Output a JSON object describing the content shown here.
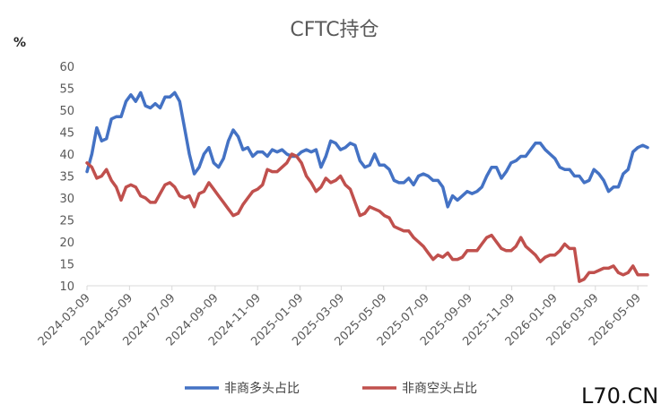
{
  "chart_data": {
    "type": "line",
    "title": "CFTC持仓",
    "unit_label": "%",
    "ylim": [
      10,
      60
    ],
    "yticks": [
      10,
      15,
      20,
      25,
      30,
      35,
      40,
      45,
      50,
      55,
      60
    ],
    "xticks": [
      "2024-03-09",
      "2024-05-09",
      "2024-07-09",
      "2024-09-09",
      "2024-11-09",
      "2025-01-09",
      "2025-03-09",
      "2025-05-09",
      "2025-07-09",
      "2025-09-09",
      "2025-11-09",
      "2026-01-09",
      "2026-03-09",
      "2026-05-09"
    ],
    "grid": false,
    "legend": "bottom",
    "colors": {
      "long": "#4472c4",
      "short": "#c0504d"
    },
    "series": [
      {
        "name": "非商多头占比",
        "points": [
          [
            "2024-03-09",
            36
          ],
          [
            "2024-03-16",
            40
          ],
          [
            "2024-03-23",
            46
          ],
          [
            "2024-03-30",
            43
          ],
          [
            "2024-04-06",
            43.5
          ],
          [
            "2024-04-13",
            48
          ],
          [
            "2024-04-20",
            48.5
          ],
          [
            "2024-04-27",
            48.5
          ],
          [
            "2024-05-04",
            52
          ],
          [
            "2024-05-11",
            53.5
          ],
          [
            "2024-05-18",
            52
          ],
          [
            "2024-05-25",
            54
          ],
          [
            "2024-06-01",
            51
          ],
          [
            "2024-06-08",
            50.5
          ],
          [
            "2024-06-15",
            51.5
          ],
          [
            "2024-06-22",
            50.5
          ],
          [
            "2024-06-29",
            53
          ],
          [
            "2024-07-06",
            53
          ],
          [
            "2024-07-13",
            54
          ],
          [
            "2024-07-20",
            52
          ],
          [
            "2024-07-27",
            46
          ],
          [
            "2024-08-03",
            40
          ],
          [
            "2024-08-10",
            35.5
          ],
          [
            "2024-08-17",
            37
          ],
          [
            "2024-08-24",
            40
          ],
          [
            "2024-08-31",
            41.5
          ],
          [
            "2024-09-07",
            38
          ],
          [
            "2024-09-14",
            37
          ],
          [
            "2024-09-21",
            39
          ],
          [
            "2024-09-28",
            43
          ],
          [
            "2024-10-05",
            45.5
          ],
          [
            "2024-10-12",
            44
          ],
          [
            "2024-10-19",
            41
          ],
          [
            "2024-10-26",
            41.5
          ],
          [
            "2024-11-02",
            39.5
          ],
          [
            "2024-11-09",
            40.5
          ],
          [
            "2024-11-16",
            40.5
          ],
          [
            "2024-11-23",
            39.5
          ],
          [
            "2024-11-30",
            41
          ],
          [
            "2024-12-07",
            40.5
          ],
          [
            "2024-12-14",
            41
          ],
          [
            "2024-12-21",
            40
          ],
          [
            "2024-12-28",
            39.5
          ],
          [
            "2025-01-04",
            39.5
          ],
          [
            "2025-01-11",
            40.5
          ],
          [
            "2025-01-18",
            41
          ],
          [
            "2025-01-25",
            40.5
          ],
          [
            "2025-02-01",
            41
          ],
          [
            "2025-02-08",
            37
          ],
          [
            "2025-02-15",
            39.5
          ],
          [
            "2025-02-22",
            43
          ],
          [
            "2025-03-01",
            42.5
          ],
          [
            "2025-03-08",
            41
          ],
          [
            "2025-03-15",
            41.5
          ],
          [
            "2025-03-22",
            42.5
          ],
          [
            "2025-03-29",
            42
          ],
          [
            "2025-04-05",
            38.5
          ],
          [
            "2025-04-12",
            37
          ],
          [
            "2025-04-19",
            37.5
          ],
          [
            "2025-04-26",
            40
          ],
          [
            "2025-05-03",
            37.5
          ],
          [
            "2025-05-10",
            37.5
          ],
          [
            "2025-05-17",
            36.5
          ],
          [
            "2025-05-24",
            34
          ],
          [
            "2025-05-31",
            33.5
          ],
          [
            "2025-06-07",
            33.5
          ],
          [
            "2025-06-14",
            34.5
          ],
          [
            "2025-06-21",
            33
          ],
          [
            "2025-06-28",
            35
          ],
          [
            "2025-07-05",
            35.5
          ],
          [
            "2025-07-12",
            35
          ],
          [
            "2025-07-19",
            34
          ],
          [
            "2025-07-26",
            34
          ],
          [
            "2025-08-02",
            32.5
          ],
          [
            "2025-08-09",
            28
          ],
          [
            "2025-08-16",
            30.5
          ],
          [
            "2025-08-23",
            29.5
          ],
          [
            "2025-08-30",
            30.5
          ],
          [
            "2025-09-06",
            31.5
          ],
          [
            "2025-09-13",
            31
          ],
          [
            "2025-09-20",
            31.5
          ],
          [
            "2025-09-27",
            32.5
          ],
          [
            "2025-10-04",
            35
          ],
          [
            "2025-10-11",
            37
          ],
          [
            "2025-10-18",
            37
          ],
          [
            "2025-10-25",
            34.5
          ],
          [
            "2025-11-01",
            36
          ],
          [
            "2025-11-08",
            38
          ],
          [
            "2025-11-15",
            38.5
          ],
          [
            "2025-11-22",
            39.5
          ],
          [
            "2025-11-29",
            39.5
          ],
          [
            "2025-12-06",
            41
          ],
          [
            "2025-12-13",
            42.5
          ],
          [
            "2025-12-20",
            42.5
          ],
          [
            "2025-12-27",
            41
          ],
          [
            "2026-01-03",
            40
          ],
          [
            "2026-01-10",
            39
          ],
          [
            "2026-01-17",
            37
          ],
          [
            "2026-01-24",
            36.5
          ],
          [
            "2026-01-31",
            36.5
          ],
          [
            "2026-02-07",
            35
          ],
          [
            "2026-02-14",
            35
          ],
          [
            "2026-02-21",
            33.5
          ],
          [
            "2026-02-28",
            34
          ],
          [
            "2026-03-07",
            36.5
          ],
          [
            "2026-03-14",
            35.5
          ],
          [
            "2026-03-21",
            34
          ],
          [
            "2026-03-28",
            31.5
          ],
          [
            "2026-04-04",
            32.5
          ],
          [
            "2026-04-11",
            32.5
          ],
          [
            "2026-04-18",
            35.5
          ],
          [
            "2026-04-25",
            36.5
          ],
          [
            "2026-05-02",
            40.5
          ],
          [
            "2026-05-09",
            41.5
          ],
          [
            "2026-05-16",
            42
          ],
          [
            "2026-05-23",
            41.5
          ]
        ]
      },
      {
        "name": "非商空头占比",
        "points": [
          [
            "2024-03-09",
            38
          ],
          [
            "2024-03-16",
            37
          ],
          [
            "2024-03-23",
            34.5
          ],
          [
            "2024-03-30",
            35
          ],
          [
            "2024-04-06",
            36.5
          ],
          [
            "2024-04-13",
            34
          ],
          [
            "2024-04-20",
            32.5
          ],
          [
            "2024-04-27",
            29.5
          ],
          [
            "2024-05-04",
            32.5
          ],
          [
            "2024-05-11",
            33
          ],
          [
            "2024-05-18",
            32.5
          ],
          [
            "2024-05-25",
            30.5
          ],
          [
            "2024-06-01",
            30
          ],
          [
            "2024-06-08",
            29
          ],
          [
            "2024-06-15",
            29
          ],
          [
            "2024-06-22",
            31
          ],
          [
            "2024-06-29",
            33
          ],
          [
            "2024-07-06",
            33.5
          ],
          [
            "2024-07-13",
            32.5
          ],
          [
            "2024-07-20",
            30.5
          ],
          [
            "2024-07-27",
            30
          ],
          [
            "2024-08-03",
            30.5
          ],
          [
            "2024-08-10",
            28
          ],
          [
            "2024-08-17",
            31
          ],
          [
            "2024-08-24",
            31.5
          ],
          [
            "2024-08-31",
            33.5
          ],
          [
            "2024-09-07",
            32
          ],
          [
            "2024-09-14",
            30.5
          ],
          [
            "2024-09-21",
            29
          ],
          [
            "2024-09-28",
            27.5
          ],
          [
            "2024-10-05",
            26
          ],
          [
            "2024-10-12",
            26.5
          ],
          [
            "2024-10-19",
            28.5
          ],
          [
            "2024-10-26",
            30
          ],
          [
            "2024-11-02",
            31.5
          ],
          [
            "2024-11-09",
            32
          ],
          [
            "2024-11-16",
            33
          ],
          [
            "2024-11-23",
            36.5
          ],
          [
            "2024-11-30",
            36
          ],
          [
            "2024-12-07",
            36
          ],
          [
            "2024-12-14",
            37
          ],
          [
            "2024-12-21",
            38
          ],
          [
            "2024-12-28",
            40
          ],
          [
            "2025-01-04",
            39.5
          ],
          [
            "2025-01-11",
            38
          ],
          [
            "2025-01-18",
            35
          ],
          [
            "2025-01-25",
            33.5
          ],
          [
            "2025-02-01",
            31.5
          ],
          [
            "2025-02-08",
            32.5
          ],
          [
            "2025-02-15",
            34.5
          ],
          [
            "2025-02-22",
            33.5
          ],
          [
            "2025-03-01",
            34
          ],
          [
            "2025-03-08",
            35
          ],
          [
            "2025-03-15",
            33
          ],
          [
            "2025-03-22",
            32
          ],
          [
            "2025-03-29",
            29
          ],
          [
            "2025-04-05",
            26
          ],
          [
            "2025-04-12",
            26.5
          ],
          [
            "2025-04-19",
            28
          ],
          [
            "2025-04-26",
            27.5
          ],
          [
            "2025-05-03",
            27
          ],
          [
            "2025-05-10",
            26
          ],
          [
            "2025-05-17",
            25.5
          ],
          [
            "2025-05-24",
            23.5
          ],
          [
            "2025-05-31",
            23
          ],
          [
            "2025-06-07",
            22.5
          ],
          [
            "2025-06-14",
            22.5
          ],
          [
            "2025-06-21",
            21
          ],
          [
            "2025-06-28",
            20
          ],
          [
            "2025-07-05",
            19
          ],
          [
            "2025-07-12",
            17.5
          ],
          [
            "2025-07-19",
            16
          ],
          [
            "2025-07-26",
            17
          ],
          [
            "2025-08-02",
            16.5
          ],
          [
            "2025-08-09",
            17.5
          ],
          [
            "2025-08-16",
            16
          ],
          [
            "2025-08-23",
            16
          ],
          [
            "2025-08-30",
            16.5
          ],
          [
            "2025-09-06",
            18
          ],
          [
            "2025-09-13",
            18
          ],
          [
            "2025-09-20",
            18
          ],
          [
            "2025-09-27",
            19.5
          ],
          [
            "2025-10-04",
            21
          ],
          [
            "2025-10-11",
            21.5
          ],
          [
            "2025-10-18",
            20
          ],
          [
            "2025-10-25",
            18.5
          ],
          [
            "2025-11-01",
            18
          ],
          [
            "2025-11-08",
            18
          ],
          [
            "2025-11-15",
            19
          ],
          [
            "2025-11-22",
            21
          ],
          [
            "2025-11-29",
            19
          ],
          [
            "2025-12-06",
            18
          ],
          [
            "2025-12-13",
            17
          ],
          [
            "2025-12-20",
            15.5
          ],
          [
            "2025-12-27",
            16.5
          ],
          [
            "2026-01-03",
            17
          ],
          [
            "2026-01-10",
            17
          ],
          [
            "2026-01-17",
            18
          ],
          [
            "2026-01-24",
            19.5
          ],
          [
            "2026-01-31",
            18.5
          ],
          [
            "2026-02-07",
            18.5
          ],
          [
            "2026-02-14",
            11
          ],
          [
            "2026-02-21",
            11.5
          ],
          [
            "2026-02-28",
            13
          ],
          [
            "2026-03-07",
            13
          ],
          [
            "2026-03-14",
            13.5
          ],
          [
            "2026-03-21",
            14
          ],
          [
            "2026-03-28",
            14
          ],
          [
            "2026-04-04",
            14.5
          ],
          [
            "2026-04-11",
            13
          ],
          [
            "2026-04-18",
            12.5
          ],
          [
            "2026-04-25",
            13
          ],
          [
            "2026-05-02",
            14.5
          ],
          [
            "2026-05-09",
            12.5
          ],
          [
            "2026-05-16",
            12.5
          ],
          [
            "2026-05-23",
            12.5
          ]
        ]
      }
    ]
  },
  "watermark": "L70.CN"
}
